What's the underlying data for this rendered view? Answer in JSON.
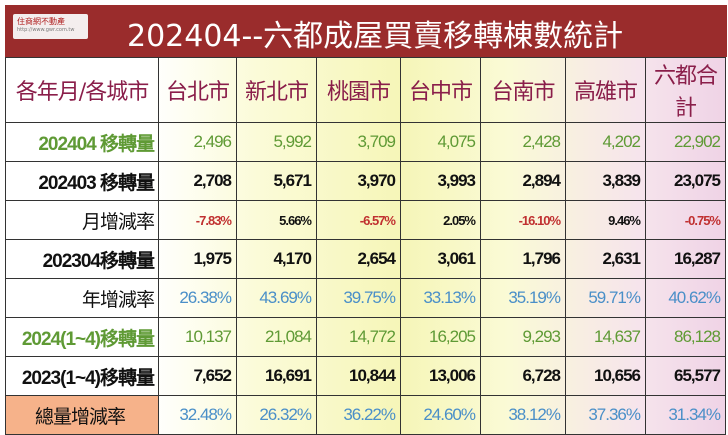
{
  "header": {
    "title": "202404--六都成屋買賣移轉棟數統計",
    "logo_text": "住商網不動產",
    "logo_url": "http://www.gwr.com.tw"
  },
  "chart_data": {
    "type": "table",
    "title": "202404--六都成屋買賣移轉棟數統計",
    "columns": [
      "各年月/各城市",
      "台北市",
      "新北市",
      "桃園市",
      "台中市",
      "台南市",
      "高雄市",
      "六都合計"
    ],
    "rows": [
      {
        "label": "202404 移轉量",
        "values": [
          "2,496",
          "5,992",
          "3,709",
          "4,075",
          "2,428",
          "4,202",
          "22,902"
        ],
        "color": "#5f9a35",
        "style": "num"
      },
      {
        "label": "202403 移轉量",
        "values": [
          "2,708",
          "5,671",
          "3,970",
          "3,993",
          "2,894",
          "3,839",
          "23,075"
        ],
        "color": "#111111",
        "style": "num"
      },
      {
        "label": "月增減率",
        "values": [
          "-7.83%",
          "5.66%",
          "-6.57%",
          "2.05%",
          "-16.10%",
          "9.46%",
          "-0.75%"
        ],
        "colors": [
          "#c03030",
          "#111111",
          "#c03030",
          "#111111",
          "#c03030",
          "#111111",
          "#c03030"
        ],
        "style": "pct"
      },
      {
        "label": "202304移轉量",
        "values": [
          "1,975",
          "4,170",
          "2,654",
          "3,061",
          "1,796",
          "2,631",
          "16,287"
        ],
        "color": "#111111",
        "style": "num"
      },
      {
        "label": "年增減率",
        "values": [
          "26.38%",
          "43.69%",
          "39.75%",
          "33.13%",
          "35.19%",
          "59.71%",
          "40.62%"
        ],
        "color": "#4a8fc8",
        "style": "num"
      },
      {
        "label": "2024(1~4)移轉量",
        "values": [
          "10,137",
          "21,084",
          "14,772",
          "16,205",
          "9,293",
          "14,637",
          "86,128"
        ],
        "color": "#5f9a35",
        "style": "num"
      },
      {
        "label": "2023(1~4)移轉量",
        "values": [
          "7,652",
          "16,691",
          "10,844",
          "13,006",
          "6,728",
          "10,656",
          "65,577"
        ],
        "color": "#111111",
        "style": "num"
      },
      {
        "label": "總量增減率",
        "values": [
          "32.48%",
          "26.32%",
          "36.22%",
          "24.60%",
          "38.12%",
          "37.36%",
          "31.34%"
        ],
        "color": "#4a8fc8",
        "style": "num",
        "label_bg": "#f6b28a"
      }
    ]
  }
}
